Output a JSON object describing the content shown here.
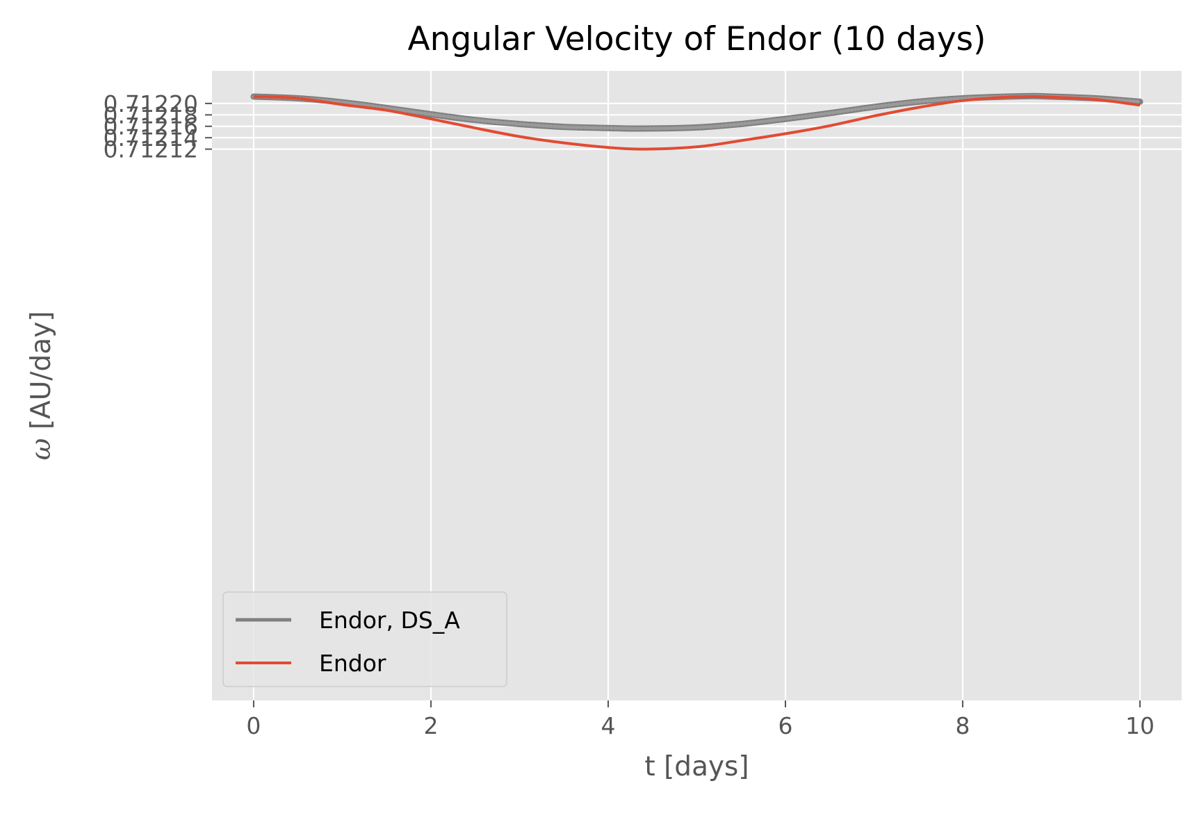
{
  "chart_data": {
    "type": "line",
    "title": "Angular Velocity of Endor (10 days)",
    "xlabel": "t [days]",
    "ylabel_symbol": "ω",
    "ylabel_text": " [AU/day]",
    "xlim": [
      -0.47,
      10.47
    ],
    "ylim": [
      0.711155,
      0.712257
    ],
    "x_ticks": [
      0,
      2,
      4,
      6,
      8,
      10
    ],
    "x_tick_labels": [
      "0",
      "2",
      "4",
      "6",
      "8",
      "10"
    ],
    "y_ticks": [
      0.71212,
      0.71214,
      0.71216,
      0.71218,
      0.7122
    ],
    "y_tick_labels": [
      "0.71212",
      "0.71214",
      "0.71216",
      "0.71218",
      "0.71220"
    ],
    "grid": true,
    "legend_position": "lower-left",
    "series": [
      {
        "name": "Endor, DS_A",
        "color": "#808080",
        "style": "dotted-thick",
        "x": [
          0,
          0.5,
          1,
          1.5,
          2,
          2.5,
          3,
          3.5,
          4,
          4.4,
          5,
          5.5,
          6,
          6.5,
          7,
          7.5,
          8,
          8.5,
          8.8,
          9,
          9.5,
          10
        ],
        "y": [
          0.712212,
          0.712209,
          0.712202,
          0.712192,
          0.712181,
          0.712171,
          0.712164,
          0.712159,
          0.712157,
          0.712156,
          0.712158,
          0.712164,
          0.712173,
          0.712183,
          0.712194,
          0.712203,
          0.712209,
          0.712212,
          0.712213,
          0.712212,
          0.712209,
          0.712203
        ]
      },
      {
        "name": "Endor",
        "color": "#E24A33",
        "style": "solid",
        "x": [
          0,
          0.5,
          1,
          1.5,
          2,
          2.5,
          3,
          3.5,
          4,
          4.4,
          5,
          5.5,
          6,
          6.5,
          7,
          7.5,
          8,
          8.5,
          8.8,
          9,
          9.5,
          10
        ],
        "y": [
          0.712212,
          0.712209,
          0.712198,
          0.712188,
          0.712173,
          0.712157,
          0.712142,
          0.712131,
          0.712123,
          0.71212,
          0.712124,
          0.712135,
          0.712147,
          0.712161,
          0.712178,
          0.712193,
          0.712205,
          0.712211,
          0.712212,
          0.712211,
          0.712207,
          0.712197
        ]
      }
    ]
  }
}
